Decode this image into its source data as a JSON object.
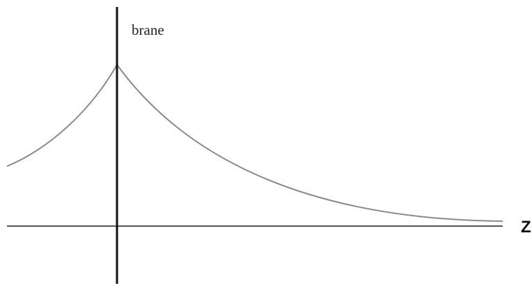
{
  "diagram": {
    "brane_label": "brane",
    "axis_label": "Z",
    "colors": {
      "background": "#ffffff",
      "curve": "#8a8a8a",
      "axis": "#555555",
      "brane": "#111111",
      "text": "#222222"
    }
  }
}
